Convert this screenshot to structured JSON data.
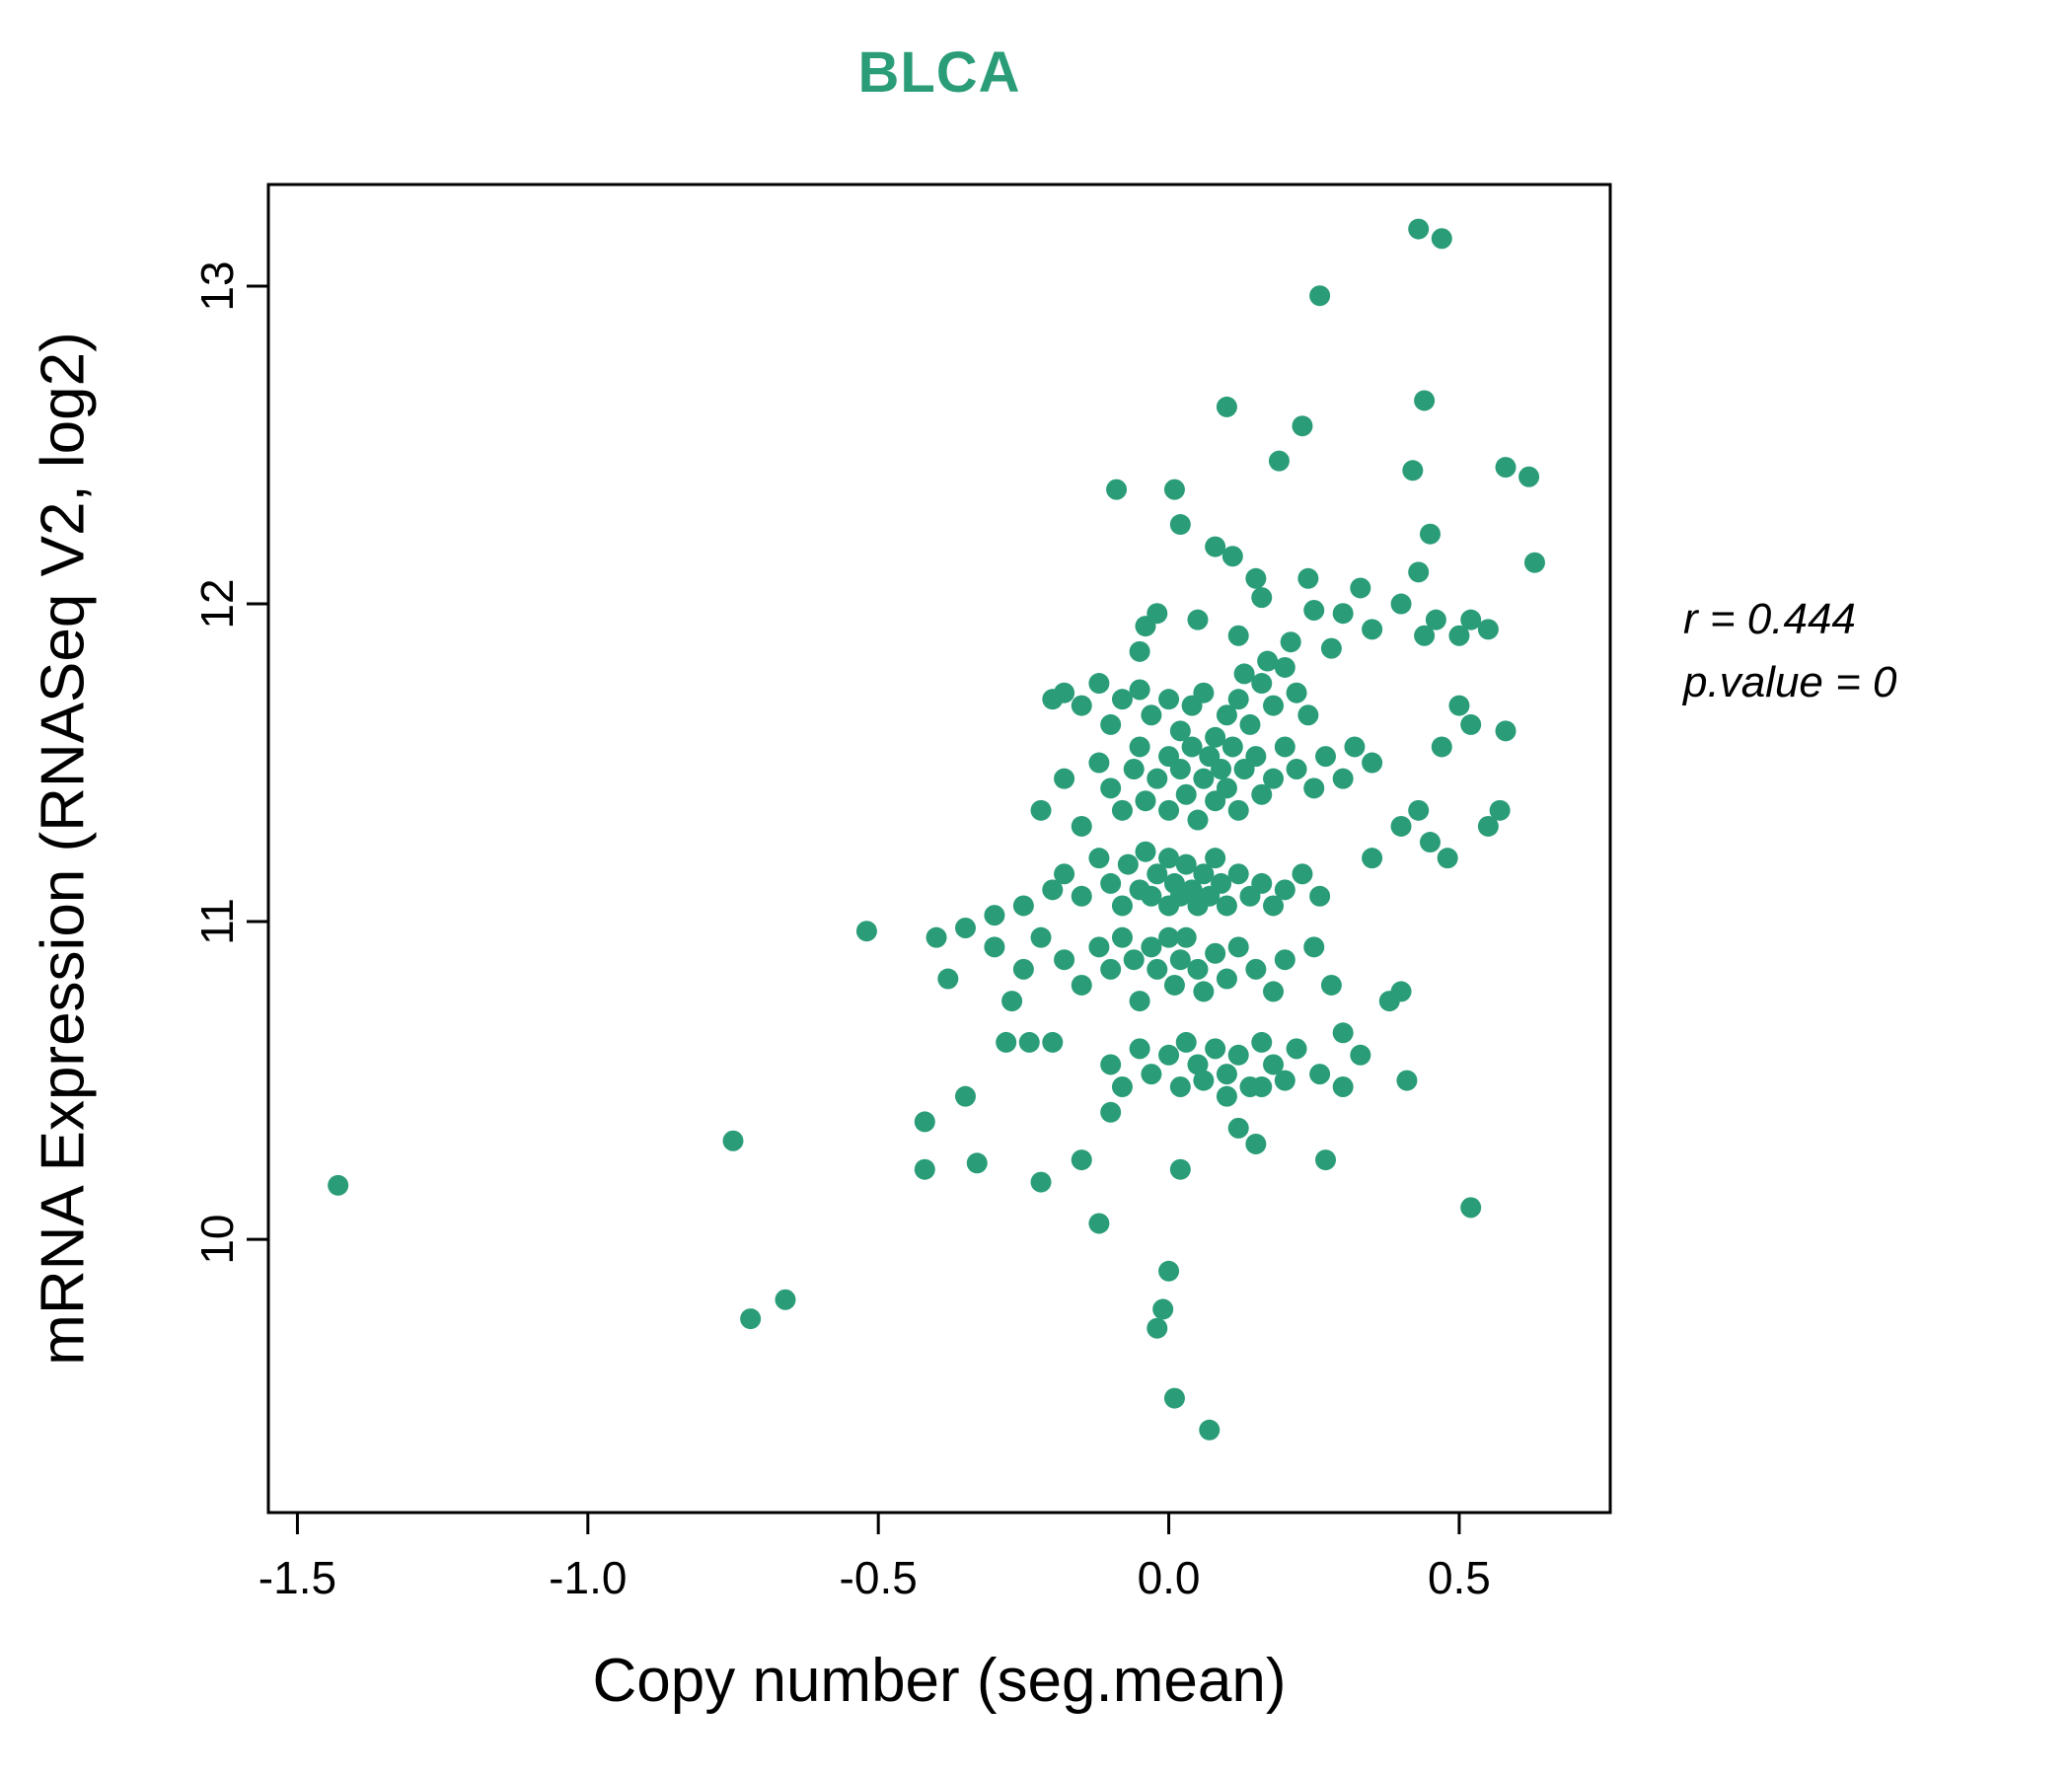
{
  "chart_data": {
    "type": "scatter",
    "title": "BLCA",
    "title_color": "#2a9d78",
    "point_color": "#2a9d78",
    "xlabel": "Copy number (seg.mean)",
    "ylabel": "mRNA Expression (RNASeq V2, log2)",
    "xlim": [
      -1.55,
      0.76
    ],
    "ylim": [
      9.14,
      13.32
    ],
    "xticks": [
      -1.5,
      -1.0,
      -0.5,
      0.0,
      0.5
    ],
    "xtick_labels": [
      "-1.5",
      "-1.0",
      "-0.5",
      "0.0",
      "0.5"
    ],
    "yticks": [
      10,
      11,
      12,
      13
    ],
    "ytick_labels": [
      "10",
      "11",
      "12",
      "13"
    ],
    "grid": false,
    "annotations": [
      "r = 0.444",
      "p.value = 0"
    ],
    "points": [
      [
        -1.43,
        10.17
      ],
      [
        -0.75,
        10.31
      ],
      [
        -0.72,
        9.75
      ],
      [
        -0.66,
        9.81
      ],
      [
        -0.52,
        10.97
      ],
      [
        -0.42,
        10.37
      ],
      [
        -0.42,
        10.22
      ],
      [
        -0.4,
        10.95
      ],
      [
        -0.38,
        10.82
      ],
      [
        -0.35,
        10.45
      ],
      [
        -0.33,
        10.24
      ],
      [
        0.43,
        13.18
      ],
      [
        0.47,
        13.15
      ],
      [
        0.26,
        12.97
      ],
      [
        0.1,
        12.62
      ],
      [
        0.23,
        12.56
      ],
      [
        0.44,
        12.64
      ],
      [
        0.19,
        12.45
      ],
      [
        0.42,
        12.42
      ],
      [
        0.58,
        12.43
      ],
      [
        0.62,
        12.4
      ],
      [
        -0.09,
        12.36
      ],
      [
        0.01,
        12.36
      ],
      [
        0.02,
        12.25
      ],
      [
        0.08,
        12.18
      ],
      [
        0.11,
        12.15
      ],
      [
        0.45,
        12.22
      ],
      [
        0.63,
        12.13
      ],
      [
        0.15,
        12.08
      ],
      [
        0.24,
        12.08
      ],
      [
        0.33,
        12.05
      ],
      [
        0.43,
        12.1
      ],
      [
        0.16,
        12.02
      ],
      [
        0.25,
        11.98
      ],
      [
        0.3,
        11.97
      ],
      [
        0.4,
        12.0
      ],
      [
        0.05,
        11.95
      ],
      [
        -0.02,
        11.97
      ],
      [
        -0.04,
        11.93
      ],
      [
        0.46,
        11.95
      ],
      [
        0.52,
        11.95
      ],
      [
        0.55,
        11.92
      ],
      [
        0.12,
        11.9
      ],
      [
        0.21,
        11.88
      ],
      [
        0.28,
        11.86
      ],
      [
        0.35,
        11.92
      ],
      [
        0.44,
        11.9
      ],
      [
        0.5,
        11.9
      ],
      [
        -0.05,
        11.85
      ],
      [
        -0.2,
        11.7
      ],
      [
        -0.18,
        11.72
      ],
      [
        -0.15,
        11.68
      ],
      [
        -0.12,
        11.75
      ],
      [
        -0.1,
        11.62
      ],
      [
        -0.08,
        11.7
      ],
      [
        -0.05,
        11.73
      ],
      [
        -0.03,
        11.65
      ],
      [
        0.0,
        11.7
      ],
      [
        0.02,
        11.6
      ],
      [
        0.04,
        11.68
      ],
      [
        0.06,
        11.72
      ],
      [
        0.08,
        11.58
      ],
      [
        0.1,
        11.65
      ],
      [
        0.12,
        11.7
      ],
      [
        0.13,
        11.78
      ],
      [
        0.14,
        11.62
      ],
      [
        0.16,
        11.75
      ],
      [
        0.17,
        11.82
      ],
      [
        0.18,
        11.68
      ],
      [
        0.2,
        11.8
      ],
      [
        0.22,
        11.72
      ],
      [
        0.24,
        11.65
      ],
      [
        0.5,
        11.68
      ],
      [
        0.52,
        11.62
      ],
      [
        0.47,
        11.55
      ],
      [
        0.58,
        11.6
      ],
      [
        -0.22,
        11.35
      ],
      [
        -0.18,
        11.45
      ],
      [
        -0.15,
        11.3
      ],
      [
        -0.12,
        11.5
      ],
      [
        -0.1,
        11.42
      ],
      [
        -0.08,
        11.35
      ],
      [
        -0.06,
        11.48
      ],
      [
        -0.05,
        11.55
      ],
      [
        -0.04,
        11.38
      ],
      [
        -0.02,
        11.45
      ],
      [
        0.0,
        11.52
      ],
      [
        0.0,
        11.35
      ],
      [
        0.02,
        11.48
      ],
      [
        0.03,
        11.4
      ],
      [
        0.04,
        11.55
      ],
      [
        0.05,
        11.32
      ],
      [
        0.06,
        11.45
      ],
      [
        0.07,
        11.52
      ],
      [
        0.08,
        11.38
      ],
      [
        0.09,
        11.48
      ],
      [
        0.1,
        11.42
      ],
      [
        0.11,
        11.55
      ],
      [
        0.12,
        11.35
      ],
      [
        0.13,
        11.48
      ],
      [
        0.15,
        11.52
      ],
      [
        0.16,
        11.4
      ],
      [
        0.18,
        11.45
      ],
      [
        0.2,
        11.55
      ],
      [
        0.22,
        11.48
      ],
      [
        0.25,
        11.42
      ],
      [
        0.27,
        11.52
      ],
      [
        0.3,
        11.45
      ],
      [
        0.32,
        11.55
      ],
      [
        0.35,
        11.5
      ],
      [
        0.4,
        11.3
      ],
      [
        0.43,
        11.35
      ],
      [
        0.45,
        11.25
      ],
      [
        0.48,
        11.2
      ],
      [
        0.55,
        11.3
      ],
      [
        0.57,
        11.35
      ],
      [
        -0.3,
        11.02
      ],
      [
        -0.25,
        11.05
      ],
      [
        -0.2,
        11.1
      ],
      [
        -0.18,
        11.15
      ],
      [
        -0.15,
        11.08
      ],
      [
        -0.12,
        11.2
      ],
      [
        -0.1,
        11.12
      ],
      [
        -0.08,
        11.05
      ],
      [
        -0.07,
        11.18
      ],
      [
        -0.05,
        11.1
      ],
      [
        -0.04,
        11.22
      ],
      [
        -0.03,
        11.08
      ],
      [
        -0.02,
        11.15
      ],
      [
        0.0,
        11.05
      ],
      [
        0.0,
        11.2
      ],
      [
        0.01,
        11.12
      ],
      [
        0.02,
        11.08
      ],
      [
        0.03,
        11.18
      ],
      [
        0.04,
        11.1
      ],
      [
        0.05,
        11.05
      ],
      [
        0.06,
        11.15
      ],
      [
        0.07,
        11.08
      ],
      [
        0.08,
        11.2
      ],
      [
        0.09,
        11.12
      ],
      [
        0.1,
        11.05
      ],
      [
        0.12,
        11.15
      ],
      [
        0.14,
        11.08
      ],
      [
        0.16,
        11.12
      ],
      [
        0.18,
        11.05
      ],
      [
        0.2,
        11.1
      ],
      [
        0.23,
        11.15
      ],
      [
        0.26,
        11.08
      ],
      [
        0.35,
        11.2
      ],
      [
        -0.35,
        10.98
      ],
      [
        -0.3,
        10.92
      ],
      [
        -0.27,
        10.75
      ],
      [
        -0.25,
        10.85
      ],
      [
        -0.22,
        10.95
      ],
      [
        -0.18,
        10.88
      ],
      [
        -0.15,
        10.8
      ],
      [
        -0.12,
        10.92
      ],
      [
        -0.1,
        10.85
      ],
      [
        -0.08,
        10.95
      ],
      [
        -0.06,
        10.88
      ],
      [
        -0.05,
        10.75
      ],
      [
        -0.03,
        10.92
      ],
      [
        -0.02,
        10.85
      ],
      [
        0.0,
        10.95
      ],
      [
        0.01,
        10.8
      ],
      [
        0.02,
        10.88
      ],
      [
        0.03,
        10.95
      ],
      [
        0.05,
        10.85
      ],
      [
        0.06,
        10.78
      ],
      [
        0.08,
        10.9
      ],
      [
        0.1,
        10.82
      ],
      [
        0.12,
        10.92
      ],
      [
        0.15,
        10.85
      ],
      [
        0.18,
        10.78
      ],
      [
        0.2,
        10.88
      ],
      [
        0.25,
        10.92
      ],
      [
        0.28,
        10.8
      ],
      [
        0.38,
        10.75
      ],
      [
        0.4,
        10.78
      ],
      [
        -0.28,
        10.62
      ],
      [
        -0.24,
        10.62
      ],
      [
        -0.2,
        10.62
      ],
      [
        -0.1,
        10.55
      ],
      [
        -0.08,
        10.48
      ],
      [
        -0.05,
        10.6
      ],
      [
        -0.03,
        10.52
      ],
      [
        0.0,
        10.58
      ],
      [
        0.02,
        10.48
      ],
      [
        0.03,
        10.62
      ],
      [
        0.05,
        10.55
      ],
      [
        0.06,
        10.5
      ],
      [
        0.08,
        10.6
      ],
      [
        0.1,
        10.52
      ],
      [
        0.12,
        10.58
      ],
      [
        0.14,
        10.48
      ],
      [
        0.16,
        10.62
      ],
      [
        0.18,
        10.55
      ],
      [
        0.22,
        10.6
      ],
      [
        0.26,
        10.52
      ],
      [
        0.3,
        10.65
      ],
      [
        0.33,
        10.58
      ],
      [
        0.41,
        10.5
      ],
      [
        -0.22,
        10.18
      ],
      [
        -0.15,
        10.25
      ],
      [
        -0.12,
        10.05
      ],
      [
        -0.1,
        10.4
      ],
      [
        0.02,
        10.22
      ],
      [
        0.1,
        10.45
      ],
      [
        0.12,
        10.35
      ],
      [
        0.15,
        10.3
      ],
      [
        0.27,
        10.25
      ],
      [
        0.16,
        10.48
      ],
      [
        0.2,
        10.5
      ],
      [
        0.3,
        10.48
      ],
      [
        0.52,
        10.1
      ],
      [
        0.0,
        9.9
      ],
      [
        -0.01,
        9.78
      ],
      [
        -0.02,
        9.72
      ],
      [
        0.01,
        9.5
      ],
      [
        0.07,
        9.4
      ]
    ]
  }
}
